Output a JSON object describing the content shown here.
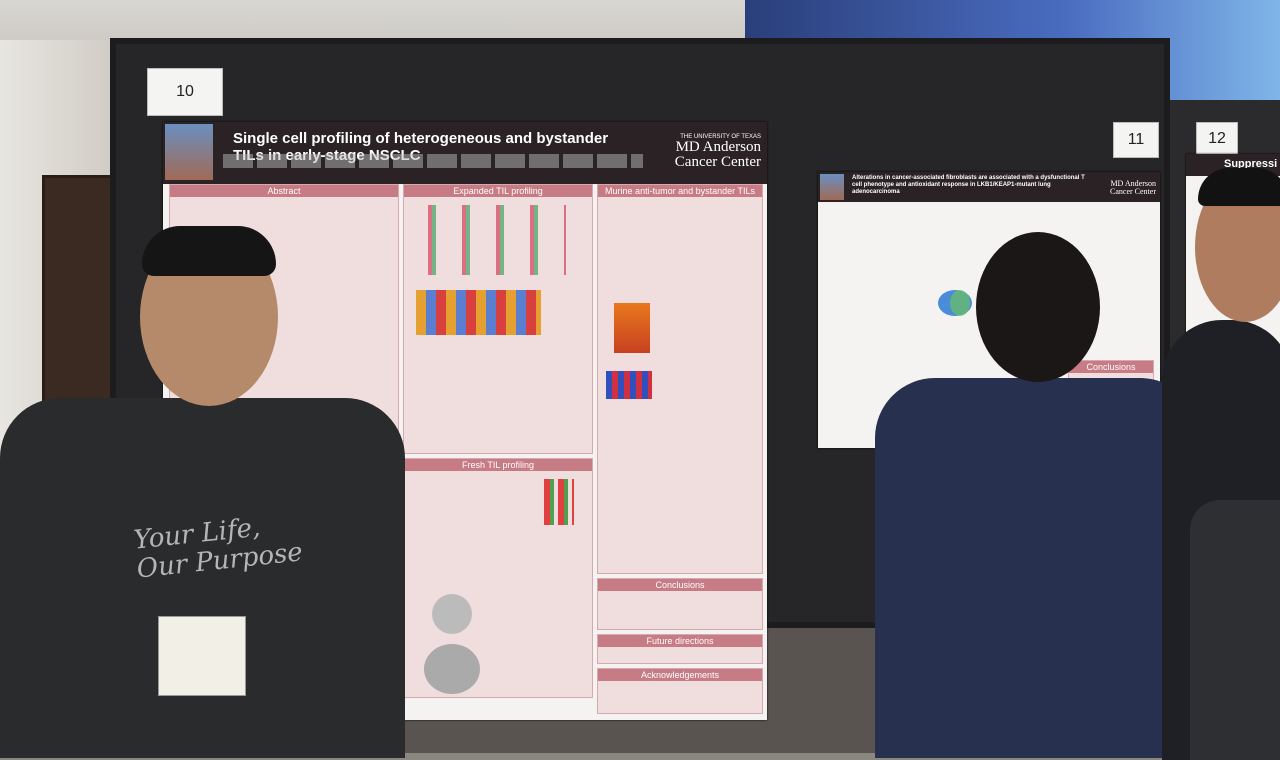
{
  "signs": [
    "10",
    "11",
    "12"
  ],
  "poster_left": {
    "title": "Single cell profiling of heterogeneous and bystander TILs in early-stage NSCLC",
    "institution": [
      "THE UNIVERSITY OF TEXAS",
      "MD Anderson",
      "Cancer Center"
    ],
    "sections": [
      "Abstract",
      "Expanded TIL profiling",
      "Murine anti-tumor and bystander TILs",
      "Fresh TIL profiling",
      "Conclusions",
      "Future directions",
      "Acknowledgements"
    ]
  },
  "poster_right": {
    "title": "Alterations in cancer-associated fibroblasts are associated with a dysfunctional T cell phenotype and antioxidant response in LKB1/KEAP1-mutant lung adenocarcinoma",
    "institution": [
      "MD Anderson",
      "Cancer Center"
    ],
    "sections": [
      "Conclusions"
    ]
  },
  "poster_far": {
    "title": "Suppressi"
  },
  "shirt": [
    "Your Life,",
    "Our Purpose"
  ]
}
